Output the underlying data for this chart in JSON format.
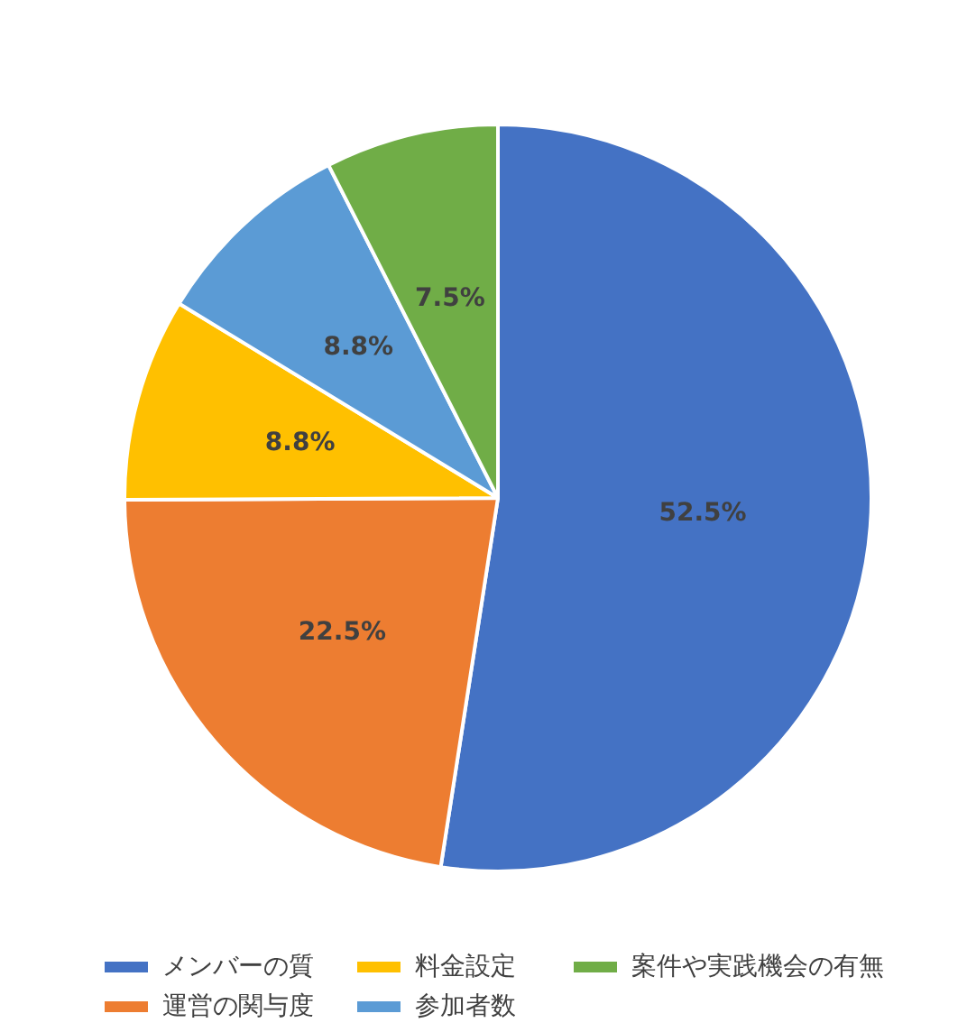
{
  "chart_data": {
    "type": "pie",
    "categories": [
      "メンバーの質",
      "運営の関与度",
      "料金設定",
      "参加者数",
      "案件や実践機会の有無"
    ],
    "values": [
      52.5,
      22.5,
      8.8,
      8.8,
      7.5
    ],
    "colors": [
      "#4472c4",
      "#ed7d31",
      "#ffc000",
      "#5b9bd5",
      "#70ad47"
    ],
    "value_labels": [
      "52.5%",
      "22.5%",
      "8.8%",
      "8.8%",
      "7.5%"
    ],
    "legend": "bottom"
  }
}
